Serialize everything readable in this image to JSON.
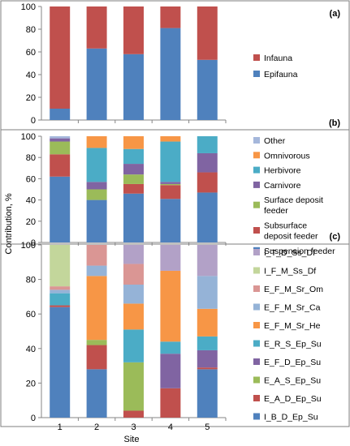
{
  "figure": {
    "ylabel": "Contribution, %",
    "xlabel": "Site",
    "categories": [
      "1",
      "2",
      "3",
      "4",
      "5"
    ]
  },
  "chart_data": [
    {
      "type": "bar",
      "stacked": true,
      "panel_label": "(a)",
      "categories": [
        "1",
        "2",
        "3",
        "4",
        "5"
      ],
      "ylim": [
        0,
        100
      ],
      "yticks": [
        0,
        20,
        40,
        60,
        80,
        100
      ],
      "legend_position": "right",
      "series": [
        {
          "name": "Epifauna",
          "color": "#4F81BD",
          "values": [
            10,
            63,
            58,
            81,
            53
          ]
        },
        {
          "name": "Infauna",
          "color": "#C0504D",
          "values": [
            90,
            37,
            42,
            19,
            47
          ]
        }
      ]
    },
    {
      "type": "bar",
      "stacked": true,
      "panel_label": "(b)",
      "categories": [
        "1",
        "2",
        "3",
        "4",
        "5"
      ],
      "ylim": [
        0,
        100
      ],
      "yticks": [
        0,
        20,
        40,
        60,
        80,
        100
      ],
      "legend_position": "right",
      "series": [
        {
          "name": "Suspension feeder",
          "color": "#4F81BD",
          "values": [
            62,
            40,
            46,
            41,
            47
          ]
        },
        {
          "name": "Subsurface deposit feeder",
          "color": "#C0504D",
          "values": [
            21,
            0,
            9,
            13,
            19
          ]
        },
        {
          "name": "Surface deposit feeder",
          "color": "#9BBB59",
          "values": [
            12,
            10,
            9,
            1,
            0
          ]
        },
        {
          "name": "Carnivore",
          "color": "#8064A2",
          "values": [
            3,
            7,
            10,
            2,
            18
          ]
        },
        {
          "name": "Herbivore",
          "color": "#4BACC6",
          "values": [
            0,
            32,
            14,
            38,
            16
          ]
        },
        {
          "name": "Omnivorous",
          "color": "#F79646",
          "values": [
            0,
            11,
            12,
            5,
            0
          ]
        },
        {
          "name": "Other",
          "color": "#A5B7DB",
          "values": [
            2,
            0,
            0,
            0,
            0
          ]
        }
      ]
    },
    {
      "type": "bar",
      "stacked": true,
      "panel_label": "(c)",
      "categories": [
        "1",
        "2",
        "3",
        "4",
        "5"
      ],
      "ylim": [
        0,
        100
      ],
      "yticks": [
        0,
        20,
        40,
        60,
        80,
        100
      ],
      "legend_position": "right",
      "series": [
        {
          "name": "I_B_D_Ep_Su",
          "color": "#4F81BD",
          "values": [
            64,
            28,
            0,
            0,
            28
          ]
        },
        {
          "name": "E_A_D_Ep_Su",
          "color": "#C0504D",
          "values": [
            1,
            14,
            4,
            17,
            1
          ]
        },
        {
          "name": "E_A_S_Ep_Su",
          "color": "#9BBB59",
          "values": [
            0,
            3,
            28,
            0,
            0
          ]
        },
        {
          "name": "E_F_D_Ep_Su",
          "color": "#8064A2",
          "values": [
            0,
            0,
            0,
            20,
            10
          ]
        },
        {
          "name": "E_R_S_Ep_Su",
          "color": "#4BACC6",
          "values": [
            7,
            0,
            19,
            7,
            8
          ]
        },
        {
          "name": "E_F_M_Sr_He",
          "color": "#F79646",
          "values": [
            0,
            37,
            15,
            41,
            16
          ]
        },
        {
          "name": "E_F_M_Sr_Ca",
          "color": "#95B3D7",
          "values": [
            2,
            6,
            11,
            0,
            19
          ]
        },
        {
          "name": "E_F_M_Sr_Om",
          "color": "#DA9694",
          "values": [
            2,
            12,
            12,
            0,
            0
          ]
        },
        {
          "name": "I_F_M_Ss_Df",
          "color": "#C3D69B",
          "values": [
            24,
            0,
            0,
            0,
            0
          ]
        },
        {
          "name": "I_T_D_Ss_Df",
          "color": "#B2A1C7",
          "values": [
            0,
            0,
            11,
            15,
            18
          ]
        }
      ]
    }
  ]
}
